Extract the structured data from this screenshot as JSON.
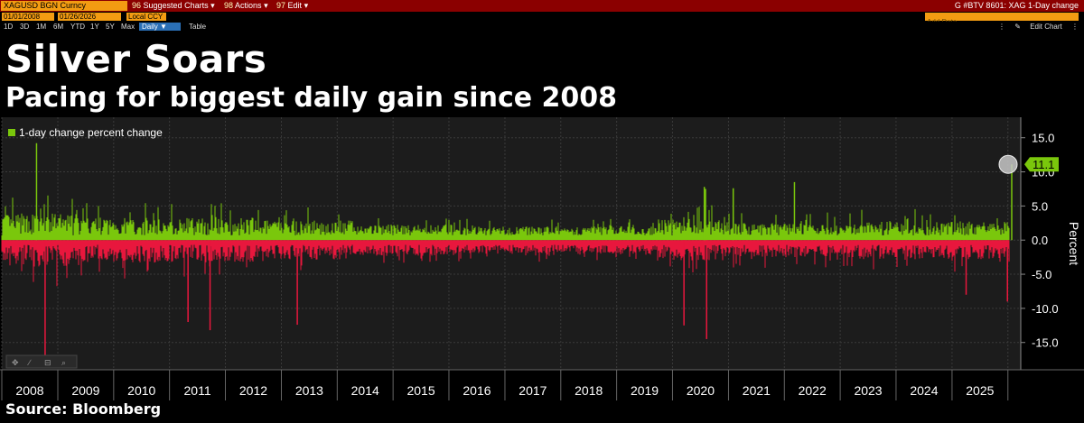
{
  "toolbar": {
    "ticker": "XAGUSD BGN Curncy",
    "menus": [
      {
        "num": "96",
        "label": "Suggested Charts"
      },
      {
        "num": "98",
        "label": "Actions"
      },
      {
        "num": "97",
        "label": "Edit"
      }
    ],
    "right_title": "G #BTV 8601: XAG 1-Day change"
  },
  "date_row": {
    "start": "01/01/2008",
    "end": "01/26/2026",
    "currency": "Local CCY",
    "add_data_placeholder": "Add Data"
  },
  "range_row": {
    "ranges": [
      "1D",
      "3D",
      "1M",
      "6M",
      "YTD",
      "1Y",
      "5Y",
      "Max"
    ],
    "frequency": "Daily",
    "table_label": "Table",
    "edit_chart_label": "Edit Chart"
  },
  "headline": {
    "title": "Silver Soars",
    "subtitle": "Pacing for biggest daily gain since 2008"
  },
  "source": "Source: Bloomberg",
  "colors": {
    "positive": "#7ac70c",
    "negative": "#e8173d",
    "background": "#000000",
    "plot_background": "#1c1c1c",
    "toolbar": "#8b0000",
    "accent": "#f39c12"
  },
  "chart_data": {
    "type": "bar",
    "legend": "1-day change percent change",
    "ylabel": "Percent",
    "ylim": [
      -19,
      18
    ],
    "yticks": [
      15.0,
      10.0,
      5.0,
      0.0,
      -5.0,
      -10.0,
      -15.0
    ],
    "xlim": [
      "2008-01-01",
      "2026-01-26"
    ],
    "xticks": [
      "2008",
      "2009",
      "2010",
      "2011",
      "2012",
      "2013",
      "2014",
      "2015",
      "2016",
      "2017",
      "2018",
      "2019",
      "2020",
      "2021",
      "2022",
      "2023",
      "2024",
      "2025"
    ],
    "last_value": 11.1,
    "last_value_label": "11.1",
    "notable_points": [
      {
        "date": "2008-08-15",
        "value": 14.2
      },
      {
        "date": "2008-10-10",
        "value": -17.0
      },
      {
        "date": "2011-05-02",
        "value": -12.0
      },
      {
        "date": "2011-09-23",
        "value": -13.2
      },
      {
        "date": "2013-04-15",
        "value": -12.4
      },
      {
        "date": "2020-03-16",
        "value": -12.5
      },
      {
        "date": "2020-08-11",
        "value": -14.5
      },
      {
        "date": "2020-07-27",
        "value": 7.8
      },
      {
        "date": "2020-08-04",
        "value": 7.5
      },
      {
        "date": "2021-02-01",
        "value": 7.6
      },
      {
        "date": "2022-03-08",
        "value": 8.5
      },
      {
        "date": "2025-04-03",
        "value": -8.0
      },
      {
        "date": "2025-12-29",
        "value": -9.0
      },
      {
        "date": "2026-01-26",
        "value": 11.1
      }
    ]
  }
}
